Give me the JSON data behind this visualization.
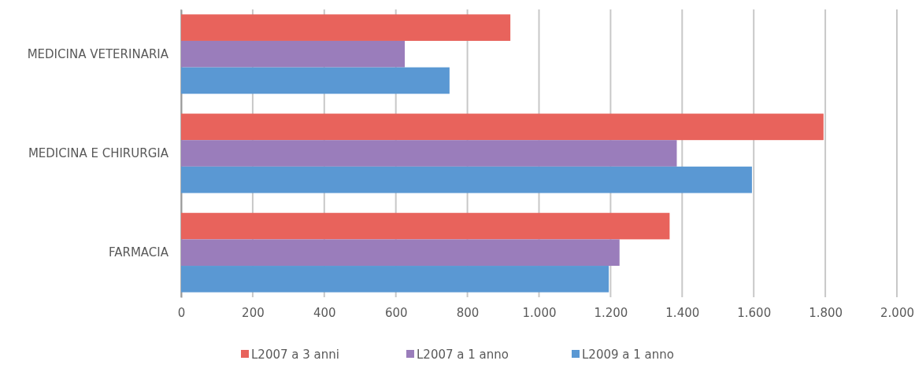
{
  "chart_data": {
    "type": "bar",
    "orientation": "horizontal",
    "categories": [
      "MEDICINA VETERINARIA",
      "MEDICINA E CHIRURGIA",
      "FARMACIA"
    ],
    "series": [
      {
        "name": "L2007 a 3 anni",
        "color": "#e8635c",
        "values": [
          920,
          1795,
          1365
        ]
      },
      {
        "name": "L2007 a 1 anno",
        "color": "#9a7dbb",
        "values": [
          625,
          1385,
          1225
        ]
      },
      {
        "name": "L2009 a 1 anno",
        "color": "#5a98d3",
        "values": [
          750,
          1595,
          1195
        ]
      }
    ],
    "xlim": [
      0,
      2000
    ],
    "xticks": [
      0,
      200,
      400,
      600,
      800,
      {
        "value": 1000,
        "label": "1.000"
      },
      {
        "value": 1200,
        "label": "1.200"
      },
      {
        "value": 1400,
        "label": "1.400"
      },
      {
        "value": 1600,
        "label": "1.600"
      },
      {
        "value": 1800,
        "label": "1.800"
      },
      {
        "value": 2000,
        "label": "2.000"
      }
    ],
    "grid": "x",
    "legend": "bottom"
  }
}
